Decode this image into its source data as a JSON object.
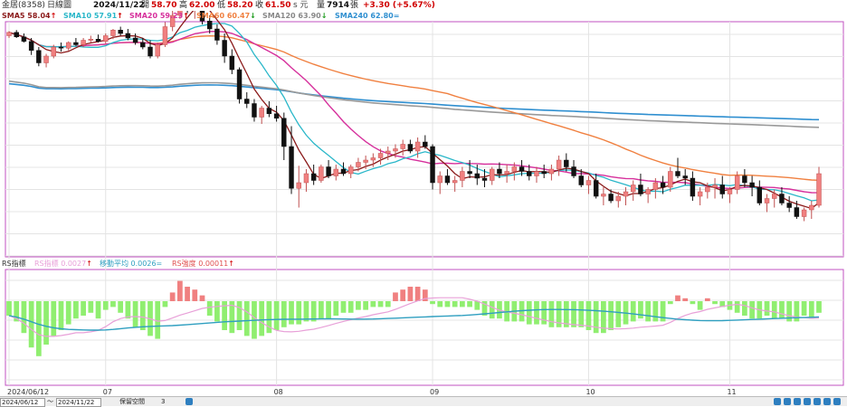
{
  "header": {
    "stock": "金居(8358)",
    "period": "日線圖",
    "date": "2024/11/22",
    "open_label": "開",
    "open": "58.70",
    "high_label": "高",
    "high": "62.00",
    "low_label": "低",
    "low": "58.20",
    "close_label": "收",
    "close": "61.50",
    "close_suffix": "s 元",
    "volume_label": "量",
    "volume": "7914",
    "volume_unit": "張",
    "change": "+3.30 (+5.67%)"
  },
  "ma_legend": [
    {
      "label": "SMA5",
      "value": "58.04",
      "arrow": "↑",
      "color": "#8b1a1a"
    },
    {
      "label": "SMA10",
      "value": "57.91",
      "arrow": "↑",
      "color": "#2ab7c9"
    },
    {
      "label": "SMA20",
      "value": "59.23",
      "arrow": "↑",
      "color": "#d6309c"
    },
    {
      "label": "SMA60",
      "value": "60.47",
      "arrow": "↓",
      "color": "#f08040"
    },
    {
      "label": "SMA120",
      "value": "63.90",
      "arrow": "↓",
      "color": "#888888"
    },
    {
      "label": "SMA240",
      "value": "62.80",
      "arrow": "=",
      "color": "#2f8fd0"
    }
  ],
  "indicator_legend": {
    "title": "RS指標",
    "items": [
      {
        "label": "RS指標",
        "value": "0.0027",
        "arrow": "↑",
        "color": "#e8a0d8"
      },
      {
        "label": "移動平均",
        "value": "0.0026",
        "arrow": "=",
        "color": "#2f9fc0"
      },
      {
        "label": "RS強度",
        "value": "0.00011",
        "arrow": "↑",
        "color": "#e05050"
      }
    ]
  },
  "x_axis": {
    "labels": [
      "2024/06/12",
      "07",
      "08",
      "09",
      "10",
      "11"
    ]
  },
  "bottom": {
    "start_date": "2024/06/12",
    "end_date": "2024/11/22",
    "tilde": "～",
    "keep_label": "保留空間",
    "keep_value": "3"
  },
  "colors": {
    "up": "#f08080",
    "down": "#111111",
    "rs_pos": "#f08080",
    "rs_neg": "#90ee70"
  },
  "chart_data": {
    "type": "candlestick",
    "ticks": [
      {
        "label": "2024/06/12",
        "index": 0
      },
      {
        "label": "07",
        "index": 13
      },
      {
        "label": "08",
        "index": 36
      },
      {
        "label": "09",
        "index": 57
      },
      {
        "label": "10",
        "index": 78
      },
      {
        "label": "11",
        "index": 97
      }
    ],
    "ohlc": [
      [
        90,
        94,
        88,
        93
      ],
      [
        93,
        95,
        88,
        89
      ],
      [
        89,
        92,
        84,
        85
      ],
      [
        85,
        88,
        73,
        77
      ],
      [
        77,
        80,
        63,
        66
      ],
      [
        66,
        74,
        62,
        72
      ],
      [
        72,
        82,
        70,
        80
      ],
      [
        80,
        84,
        76,
        79
      ],
      [
        79,
        85,
        77,
        84
      ],
      [
        84,
        88,
        81,
        82
      ],
      [
        82,
        88,
        80,
        86
      ],
      [
        86,
        90,
        84,
        87
      ],
      [
        87,
        91,
        84,
        85
      ],
      [
        85,
        92,
        83,
        90
      ],
      [
        90,
        96,
        87,
        95
      ],
      [
        95,
        98,
        90,
        92
      ],
      [
        92,
        96,
        86,
        88
      ],
      [
        88,
        92,
        82,
        84
      ],
      [
        84,
        88,
        78,
        80
      ],
      [
        80,
        86,
        70,
        72
      ],
      [
        72,
        84,
        70,
        82
      ],
      [
        82,
        102,
        80,
        98
      ],
      [
        98,
        112,
        94,
        108
      ],
      [
        108,
        135,
        105,
        128
      ],
      [
        128,
        133,
        110,
        115
      ],
      [
        115,
        125,
        105,
        120
      ],
      [
        120,
        122,
        100,
        103
      ],
      [
        103,
        108,
        92,
        96
      ],
      [
        96,
        100,
        82,
        86
      ],
      [
        86,
        92,
        66,
        72
      ],
      [
        72,
        78,
        56,
        60
      ],
      [
        60,
        62,
        30,
        34
      ],
      [
        34,
        40,
        26,
        30
      ],
      [
        30,
        34,
        14,
        18
      ],
      [
        18,
        28,
        12,
        26
      ],
      [
        26,
        32,
        18,
        21
      ],
      [
        21,
        28,
        14,
        17
      ],
      [
        17,
        22,
        -20,
        -8
      ],
      [
        -8,
        10,
        -50,
        -45
      ],
      [
        -45,
        -25,
        -62,
        -40
      ],
      [
        -40,
        -28,
        -48,
        -32
      ],
      [
        -32,
        -24,
        -42,
        -38
      ],
      [
        -38,
        -24,
        -40,
        -26
      ],
      [
        -26,
        -20,
        -36,
        -34
      ],
      [
        -34,
        -24,
        -38,
        -28
      ],
      [
        -28,
        -22,
        -34,
        -32
      ],
      [
        -32,
        -24,
        -36,
        -26
      ],
      [
        -26,
        -18,
        -30,
        -22
      ],
      [
        -22,
        -16,
        -28,
        -20
      ],
      [
        -20,
        -14,
        -26,
        -18
      ],
      [
        -18,
        -10,
        -24,
        -14
      ],
      [
        -14,
        -8,
        -20,
        -12
      ],
      [
        -12,
        -6,
        -18,
        -10
      ],
      [
        -10,
        -2,
        -16,
        -6
      ],
      [
        -6,
        -2,
        -14,
        -12
      ],
      [
        -12,
        0,
        -18,
        -4
      ],
      [
        -4,
        2,
        -10,
        -8
      ],
      [
        -8,
        -6,
        -46,
        -40
      ],
      [
        -40,
        -30,
        -50,
        -34
      ],
      [
        -34,
        -28,
        -42,
        -40
      ],
      [
        -40,
        -34,
        -48,
        -38
      ],
      [
        -38,
        -26,
        -44,
        -30
      ],
      [
        -30,
        -20,
        -36,
        -32
      ],
      [
        -32,
        -24,
        -42,
        -36
      ],
      [
        -36,
        -28,
        -44,
        -38
      ],
      [
        -38,
        -26,
        -42,
        -28
      ],
      [
        -28,
        -22,
        -36,
        -32
      ],
      [
        -32,
        -24,
        -40,
        -30
      ],
      [
        -30,
        -22,
        -38,
        -26
      ],
      [
        -26,
        -20,
        -34,
        -30
      ],
      [
        -30,
        -24,
        -38,
        -34
      ],
      [
        -34,
        -26,
        -40,
        -30
      ],
      [
        -30,
        -24,
        -36,
        -32
      ],
      [
        -32,
        -24,
        -38,
        -28
      ],
      [
        -28,
        -16,
        -34,
        -20
      ],
      [
        -20,
        -14,
        -30,
        -26
      ],
      [
        -26,
        -20,
        -36,
        -34
      ],
      [
        -34,
        -28,
        -44,
        -42
      ],
      [
        -42,
        -34,
        -50,
        -38
      ],
      [
        -38,
        -32,
        -54,
        -52
      ],
      [
        -52,
        -44,
        -60,
        -50
      ],
      [
        -50,
        -46,
        -58,
        -56
      ],
      [
        -56,
        -48,
        -62,
        -52
      ],
      [
        -52,
        -44,
        -60,
        -48
      ],
      [
        -48,
        -38,
        -56,
        -42
      ],
      [
        -42,
        -32,
        -52,
        -50
      ],
      [
        -50,
        -44,
        -58,
        -46
      ],
      [
        -46,
        -36,
        -54,
        -40
      ],
      [
        -40,
        -34,
        -50,
        -44
      ],
      [
        -44,
        -26,
        -48,
        -30
      ],
      [
        -30,
        -18,
        -36,
        -34
      ],
      [
        -34,
        -28,
        -42,
        -36
      ],
      [
        -36,
        -30,
        -56,
        -52
      ],
      [
        -52,
        -44,
        -60,
        -48
      ],
      [
        -48,
        -40,
        -54,
        -44
      ],
      [
        -44,
        -36,
        -54,
        -42
      ],
      [
        -42,
        -34,
        -54,
        -50
      ],
      [
        -50,
        -44,
        -58,
        -46
      ],
      [
        -46,
        -30,
        -50,
        -34
      ],
      [
        -34,
        -28,
        -44,
        -40
      ],
      [
        -40,
        -34,
        -52,
        -44
      ],
      [
        -44,
        -38,
        -60,
        -58
      ],
      [
        -58,
        -50,
        -66,
        -54
      ],
      [
        -54,
        -46,
        -62,
        -50
      ],
      [
        -50,
        -44,
        -60,
        -58
      ],
      [
        -58,
        -52,
        -66,
        -62
      ],
      [
        -62,
        -56,
        -72,
        -70
      ],
      [
        -70,
        -62,
        -74,
        -64
      ],
      [
        -64,
        -56,
        -72,
        -60
      ],
      [
        -60,
        -26,
        -62,
        -32
      ]
    ],
    "rs": [
      -10,
      -14,
      -22,
      -32,
      -38,
      -30,
      -24,
      -20,
      -16,
      -12,
      -10,
      -8,
      -12,
      -6,
      -4,
      -8,
      -12,
      -18,
      -20,
      -24,
      -26,
      -4,
      6,
      14,
      10,
      8,
      4,
      -10,
      -14,
      -20,
      -22,
      -20,
      -24,
      -26,
      -24,
      -22,
      -20,
      -18,
      -16,
      -16,
      -14,
      -14,
      -12,
      -12,
      -10,
      -8,
      -8,
      -6,
      -6,
      -4,
      -4,
      -4,
      6,
      8,
      10,
      10,
      8,
      -2,
      -4,
      -4,
      -4,
      -4,
      -4,
      -6,
      -10,
      -12,
      -12,
      -14,
      -14,
      -14,
      -16,
      -16,
      -16,
      -18,
      -18,
      -18,
      -18,
      -18,
      -20,
      -22,
      -22,
      -20,
      -18,
      -16,
      -14,
      -12,
      -14,
      -14,
      -14,
      -2,
      4,
      2,
      -2,
      -6,
      2,
      -2,
      -4,
      -6,
      -8,
      -10,
      -12,
      -12,
      -10,
      -12,
      -12,
      -14,
      -14,
      -10,
      -12,
      -8
    ]
  }
}
